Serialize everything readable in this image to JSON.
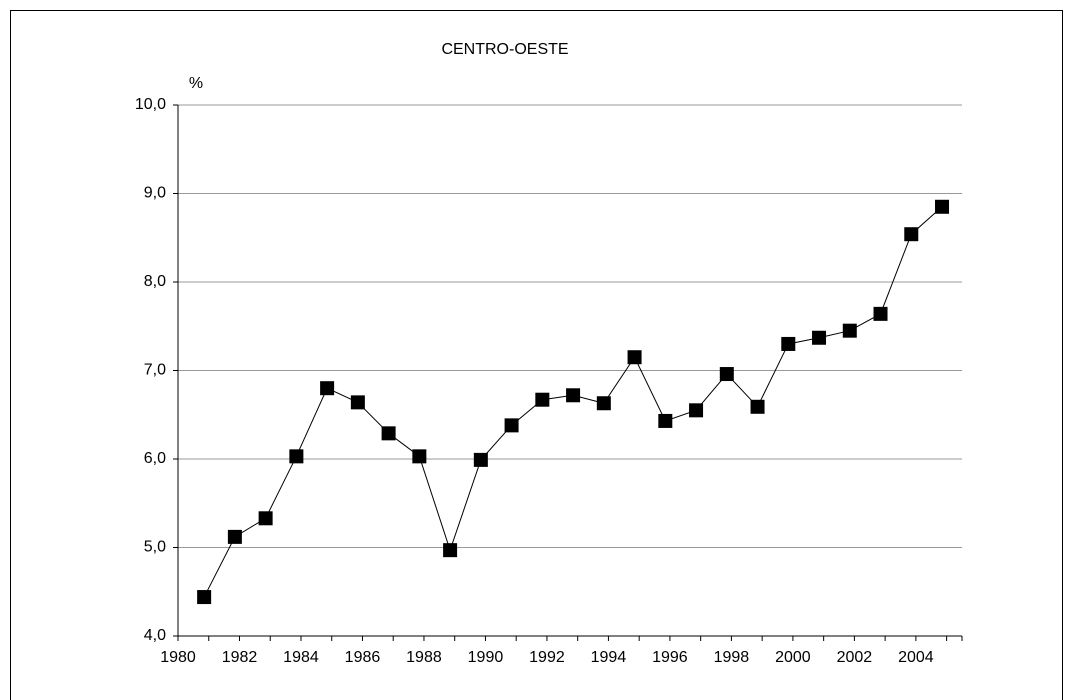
{
  "chart_data": {
    "type": "line",
    "title": "CENTRO-OESTE",
    "y_label": "%",
    "categories": [
      "1980",
      null,
      "1982",
      null,
      "1984",
      null,
      "1986",
      null,
      "1988",
      null,
      "1990",
      null,
      "1992",
      null,
      "1994",
      null,
      "1996",
      null,
      "1998",
      null,
      "2000",
      null,
      "2002",
      null,
      "2004"
    ],
    "series": [
      {
        "name": "CENTRO-OESTE",
        "color": "#000000",
        "values": [
          4.44,
          5.12,
          5.33,
          6.03,
          6.8,
          6.64,
          6.29,
          6.03,
          4.97,
          5.99,
          6.38,
          6.67,
          6.72,
          6.63,
          7.15,
          6.43,
          6.55,
          6.96,
          6.59,
          7.3,
          7.37,
          7.45,
          7.64,
          8.54,
          8.85
        ]
      }
    ],
    "ylim": [
      4,
      10
    ],
    "yticks": [
      {
        "value": 4,
        "label": "4,0"
      },
      {
        "value": 5,
        "label": "5,0"
      },
      {
        "value": 6,
        "label": "6,0"
      },
      {
        "value": 7,
        "label": "7,0"
      },
      {
        "value": 8,
        "label": "8,0"
      },
      {
        "value": 9,
        "label": "9,0"
      },
      {
        "value": 10,
        "label": "10,0"
      }
    ],
    "grid": true
  }
}
